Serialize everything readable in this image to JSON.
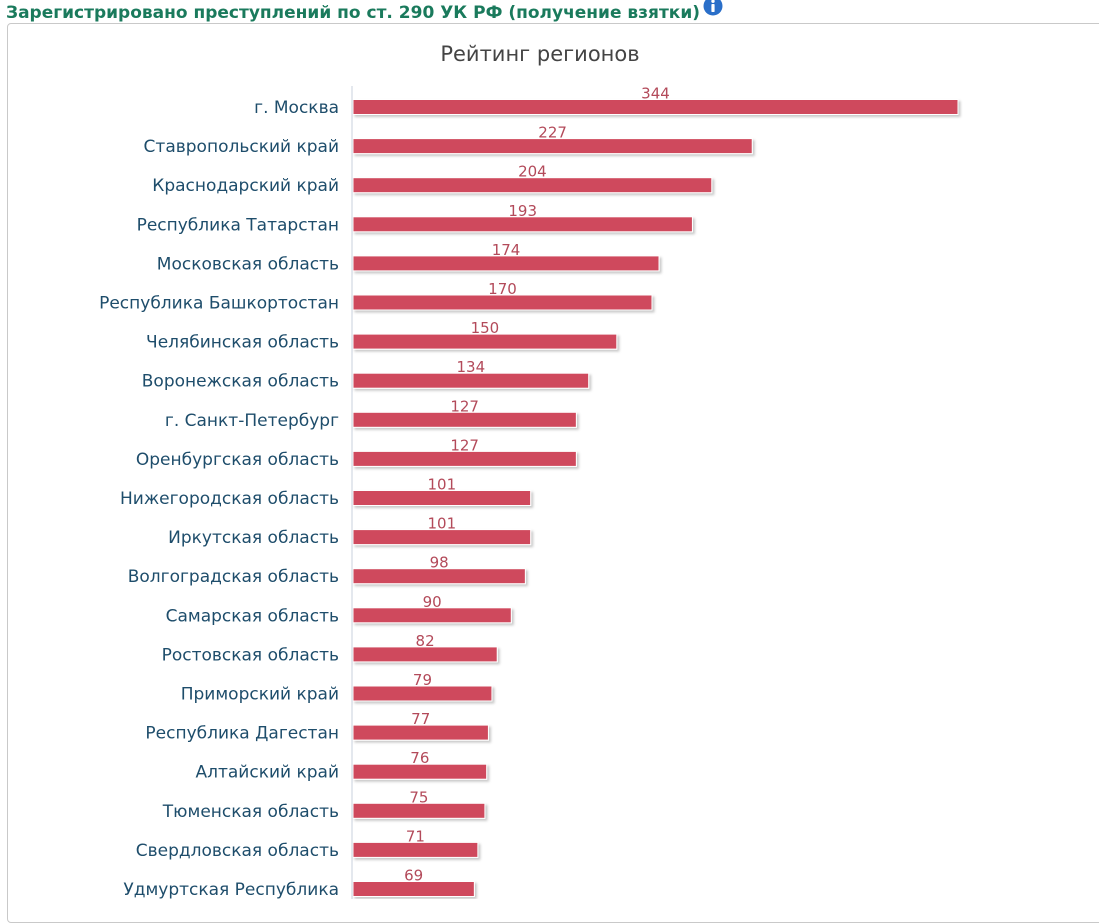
{
  "header": {
    "title": "Зарегистрировано преступлений по ст. 290 УК РФ (получение взятки)",
    "info_icon": "info-icon"
  },
  "colors": {
    "heading": "#1a7a5c",
    "bar": "#cf4a5d",
    "data_label": "#b34a5a",
    "category_label": "#1e4d6b",
    "title": "#444444",
    "info_icon": "#2a6fc9"
  },
  "chart_data": {
    "type": "bar",
    "orientation": "horizontal",
    "title": "Рейтинг регионов",
    "categories": [
      "г. Москва",
      "Ставропольский край",
      "Краснодарский край",
      "Республика Татарстан",
      "Московская область",
      "Республика Башкортостан",
      "Челябинская область",
      "Воронежская область",
      "г. Санкт-Петербург",
      "Оренбургская область",
      "Нижегородская область",
      "Иркутская область",
      "Волгоградская область",
      "Самарская область",
      "Ростовская область",
      "Приморский край",
      "Республика Дагестан",
      "Алтайский край",
      "Тюменская область",
      "Свердловская область",
      "Удмуртская Республика"
    ],
    "values": [
      344,
      227,
      204,
      193,
      174,
      170,
      150,
      134,
      127,
      127,
      101,
      101,
      98,
      90,
      82,
      79,
      77,
      76,
      75,
      71,
      69
    ],
    "xlim": [
      0,
      344
    ],
    "grid": false,
    "legend": "none",
    "data_labels": true
  }
}
